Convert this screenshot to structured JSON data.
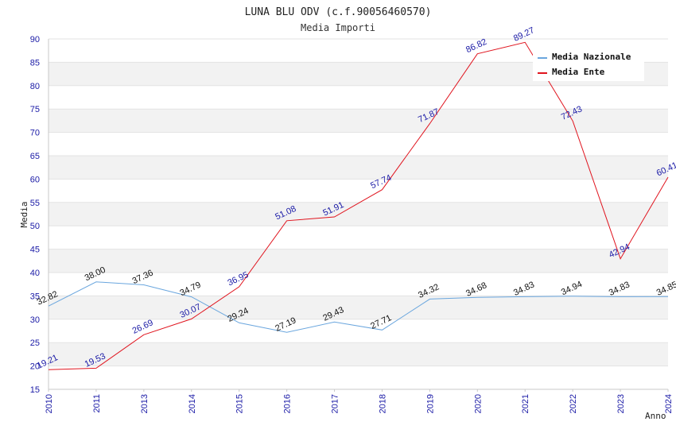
{
  "chart_data": {
    "type": "line",
    "title": "LUNA BLU ODV (c.f.90056460570)",
    "subtitle": "Media Importi",
    "xlabel": "Anno",
    "ylabel": "Media",
    "ylim": [
      15,
      90
    ],
    "yticks": [
      15,
      20,
      25,
      30,
      35,
      40,
      45,
      50,
      55,
      60,
      65,
      70,
      75,
      80,
      85,
      90
    ],
    "categories": [
      "2010",
      "2011",
      "2013",
      "2014",
      "2015",
      "2016",
      "2017",
      "2018",
      "2019",
      "2020",
      "2021",
      "2022",
      "2023",
      "2024"
    ],
    "series": [
      {
        "name": "Media Nazionale",
        "color": "#6aa6de",
        "values": [
          32.82,
          38.0,
          37.36,
          34.79,
          29.24,
          27.19,
          29.43,
          27.71,
          34.32,
          34.68,
          34.83,
          34.94,
          34.83,
          34.85
        ],
        "labels": [
          "32.82",
          "38.00",
          "37.36",
          "34.79",
          "29.24",
          "27.19",
          "29.43",
          "27.71",
          "34.32",
          "34.68",
          "34.83",
          "34.94",
          "34.83",
          "34.85"
        ]
      },
      {
        "name": "Media Ente",
        "color": "#e0141e",
        "values": [
          19.21,
          19.53,
          26.69,
          30.07,
          36.95,
          51.08,
          51.91,
          57.74,
          71.87,
          86.82,
          89.27,
          72.43,
          42.94,
          60.41
        ],
        "labels": [
          "19.21",
          "19.53",
          "26.69",
          "30.07",
          "36.95",
          "51.08",
          "51.91",
          "57.74",
          "71.87",
          "86.82",
          "89.27",
          "72.43",
          "42.94",
          "60.41"
        ]
      }
    ],
    "legend": {
      "position": "top-right"
    },
    "grid": true
  }
}
